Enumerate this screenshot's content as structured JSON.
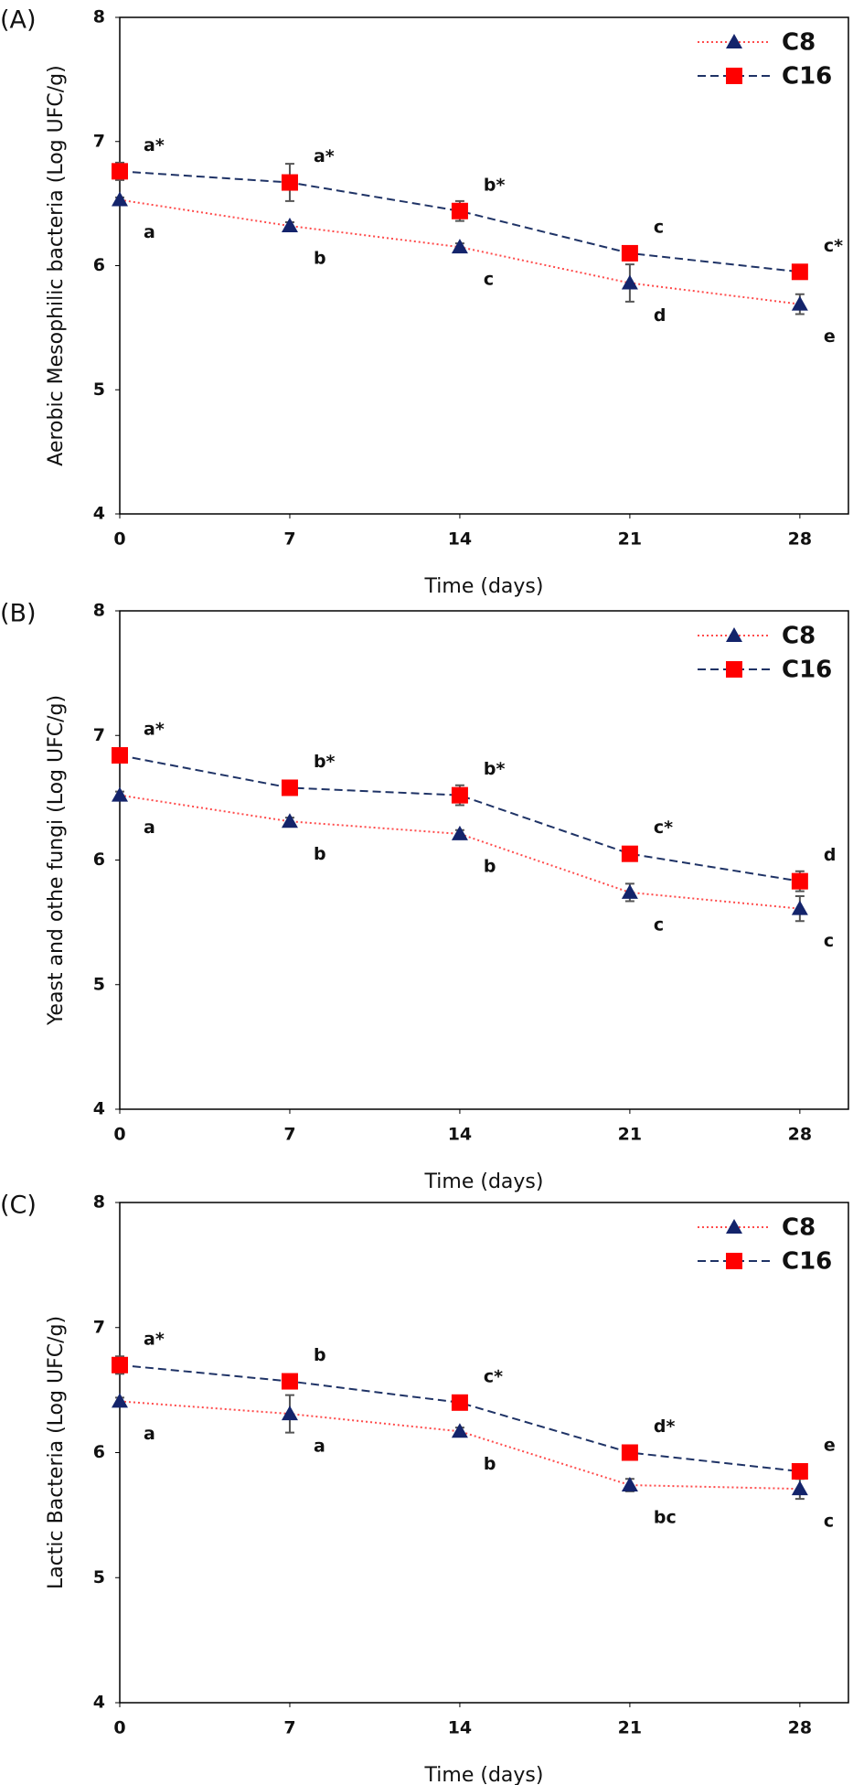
{
  "chart_data": [
    {
      "type": "line",
      "panel_label": "(A)",
      "ylabel": "Aerobic Mesophilic bacteria (Log UFC/g)",
      "xlabel": "Time (days)",
      "x": [
        0,
        7,
        14,
        21,
        28
      ],
      "xlim": [
        0,
        30
      ],
      "xticks": [
        0,
        7,
        14,
        21,
        28
      ],
      "ylim": [
        4,
        8
      ],
      "yticks": [
        4,
        5,
        6,
        7,
        8
      ],
      "legend": "upper right",
      "series": [
        {
          "name": "C8",
          "line_color": "#ff4b4b",
          "marker_color": "#14246b",
          "marker": "triangle",
          "line_style": "dotted",
          "values": [
            6.53,
            6.32,
            6.15,
            5.86,
            5.69
          ],
          "errors": [
            0.02,
            0.03,
            0.03,
            0.15,
            0.08
          ],
          "letters": [
            "a",
            "b",
            "c",
            "d",
            "e"
          ]
        },
        {
          "name": "C16",
          "line_color": "#1f3366",
          "marker_color": "#ff0000",
          "marker": "square",
          "line_style": "dashed",
          "values": [
            6.76,
            6.67,
            6.44,
            6.1,
            5.95
          ],
          "errors": [
            0.07,
            0.15,
            0.08,
            0.05,
            0.03
          ],
          "letters": [
            "a*",
            "a*",
            "b*",
            "c",
            "c*"
          ]
        }
      ]
    },
    {
      "type": "line",
      "panel_label": "(B)",
      "ylabel": "Yeast and othe fungi (Log UFC/g)",
      "xlabel": "Time (days)",
      "x": [
        0,
        7,
        14,
        21,
        28
      ],
      "xlim": [
        0,
        30
      ],
      "xticks": [
        0,
        7,
        14,
        21,
        28
      ],
      "ylim": [
        4,
        8
      ],
      "yticks": [
        4,
        5,
        6,
        7,
        8
      ],
      "legend": "upper right",
      "series": [
        {
          "name": "C8",
          "line_color": "#ff4b4b",
          "marker_color": "#14246b",
          "marker": "triangle",
          "line_style": "dotted",
          "values": [
            6.52,
            6.31,
            6.21,
            5.74,
            5.61
          ],
          "errors": [
            0.03,
            0.03,
            0.03,
            0.07,
            0.1
          ],
          "letters": [
            "a",
            "b",
            "b",
            "c",
            "c"
          ]
        },
        {
          "name": "C16",
          "line_color": "#1f3366",
          "marker_color": "#ff0000",
          "marker": "square",
          "line_style": "dashed",
          "values": [
            6.84,
            6.58,
            6.52,
            6.05,
            5.83
          ],
          "errors": [
            0.03,
            0.03,
            0.08,
            0.05,
            0.08
          ],
          "letters": [
            "a*",
            "b*",
            "b*",
            "c*",
            "d"
          ]
        }
      ]
    },
    {
      "type": "line",
      "panel_label": "(C)",
      "ylabel": "Lactic Bacteria (Log UFC/g)",
      "xlabel": "Time (days)",
      "x": [
        0,
        7,
        14,
        21,
        28
      ],
      "xlim": [
        0,
        30
      ],
      "xticks": [
        0,
        7,
        14,
        21,
        28
      ],
      "ylim": [
        4,
        8
      ],
      "yticks": [
        4,
        5,
        6,
        7,
        8
      ],
      "legend": "upper right",
      "series": [
        {
          "name": "C8",
          "line_color": "#ff4b4b",
          "marker_color": "#14246b",
          "marker": "triangle",
          "line_style": "dotted",
          "values": [
            6.41,
            6.31,
            6.17,
            5.74,
            5.71
          ],
          "errors": [
            0.03,
            0.15,
            0.03,
            0.05,
            0.08
          ],
          "letters": [
            "a",
            "a",
            "b",
            "bc",
            "c"
          ]
        },
        {
          "name": "C16",
          "line_color": "#1f3366",
          "marker_color": "#ff0000",
          "marker": "square",
          "line_style": "dashed",
          "values": [
            6.7,
            6.57,
            6.4,
            6.0,
            5.85
          ],
          "errors": [
            0.07,
            0.03,
            0.03,
            0.03,
            0.05
          ],
          "letters": [
            "a*",
            "b",
            "c*",
            "d*",
            "e"
          ]
        }
      ]
    }
  ]
}
